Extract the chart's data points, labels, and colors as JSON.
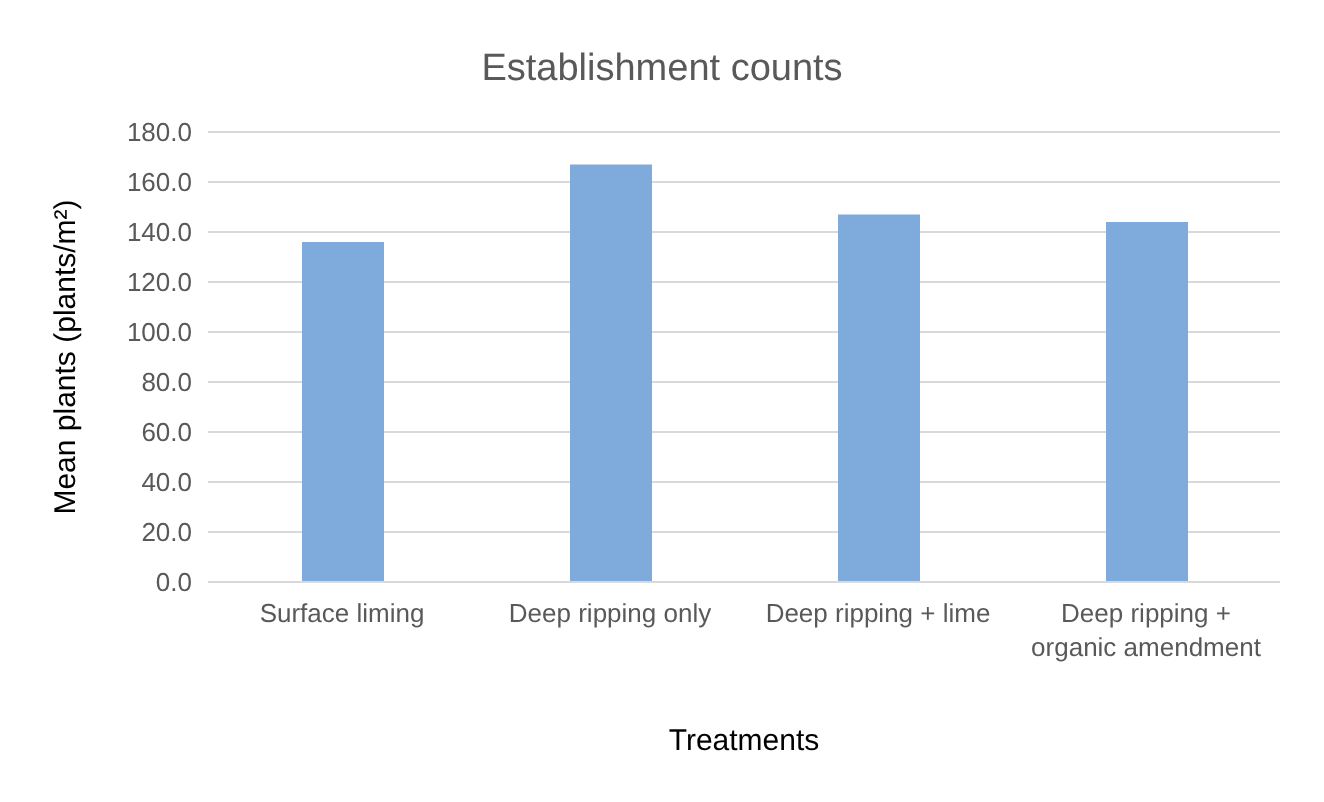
{
  "chart_data": {
    "type": "bar",
    "title": "Establishment counts",
    "xlabel": "Treatments",
    "ylabel": "Mean plants (plants/m²)",
    "categories": [
      "Surface liming",
      "Deep ripping only",
      "Deep ripping + lime",
      "Deep ripping + organic amendment"
    ],
    "values": [
      136,
      167,
      147,
      144
    ],
    "color": "#7eabdb",
    "ylim": [
      0,
      180
    ],
    "yticks": [
      {
        "value": 0,
        "label": "0.0"
      },
      {
        "value": 20,
        "label": "20.0"
      },
      {
        "value": 40,
        "label": "40.0"
      },
      {
        "value": 60,
        "label": "60.0"
      },
      {
        "value": 80,
        "label": "80.0"
      },
      {
        "value": 100,
        "label": "100.0"
      },
      {
        "value": 120,
        "label": "120.0"
      },
      {
        "value": 140,
        "label": "140.0"
      },
      {
        "value": 160,
        "label": "160.0"
      },
      {
        "value": 180,
        "label": "180.0"
      }
    ],
    "grid": "y"
  }
}
